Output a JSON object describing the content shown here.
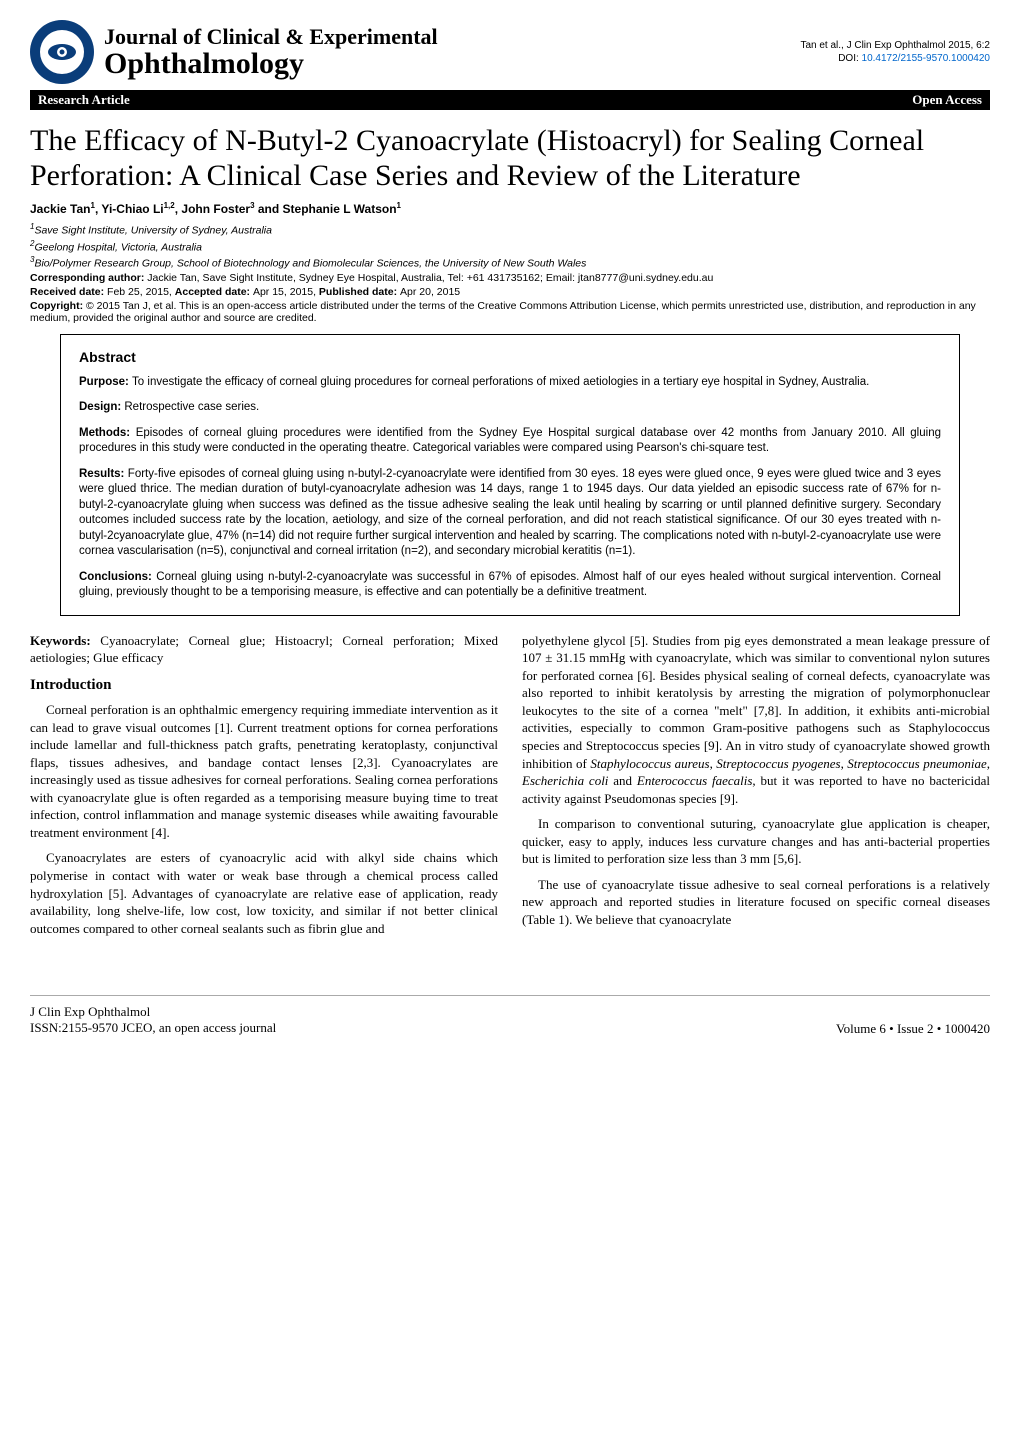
{
  "header": {
    "journal_line1": "Journal of Clinical & Experimental",
    "journal_line2": "Ophthalmology",
    "citation": "Tan et al., J Clin Exp Ophthalmol 2015, 6:2",
    "doi_prefix": "DOI: ",
    "doi": "10.4172/2155-9570.1000420",
    "bar_left": "Research Article",
    "bar_right": "Open Access"
  },
  "title": "The Efficacy of N-Butyl-2 Cyanoacrylate (Histoacryl) for Sealing Corneal Perforation: A Clinical Case Series and Review of the Literature",
  "authors_html": "Jackie Tan<span class='sup'>1</span>, Yi-Chiao Li<span class='sup'>1,2</span>, John Foster<span class='sup'>3</span> and Stephanie L Watson<span class='sup'>1</span>",
  "affiliations": [
    "1Save Sight Institute, University of Sydney, Australia",
    "2Geelong Hospital, Victoria, Australia",
    "3Bio/Polymer Research Group, School of Biotechnology and Biomolecular Sciences, the University of New South Wales"
  ],
  "corresponding": {
    "label": "Corresponding author: ",
    "text": "Jackie Tan, Save Sight Institute, Sydney Eye Hospital, Australia, Tel: +61 431735162; Email: jtan8777@uni.sydney.edu.au"
  },
  "dates": {
    "received_label": "Received date: ",
    "received": "Feb 25, 2015, ",
    "accepted_label": "Accepted date: ",
    "accepted": "Apr 15, 2015, ",
    "published_label": "Published date: ",
    "published": "Apr 20, 2015"
  },
  "copyright": {
    "label": "Copyright: ",
    "text": "© 2015 Tan J, et al. This is an open-access article distributed under the terms of the Creative Commons Attribution License, which permits unrestricted use, distribution, and reproduction in any medium, provided the original author and source are credited."
  },
  "abstract": {
    "heading": "Abstract",
    "paragraphs": [
      {
        "label": "Purpose: ",
        "text": "To investigate the efficacy of corneal gluing procedures for corneal perforations of mixed aetiologies in a tertiary eye hospital in Sydney, Australia."
      },
      {
        "label": "Design: ",
        "text": "Retrospective case series."
      },
      {
        "label": "Methods: ",
        "text": "Episodes of corneal gluing procedures were identified from the Sydney Eye Hospital surgical database over 42 months from January 2010. All gluing procedures in this study were conducted in the operating theatre. Categorical variables were compared using Pearson's chi-square test."
      },
      {
        "label": "Results: ",
        "text": "Forty-five episodes of corneal gluing using n-butyl-2-cyanoacrylate were identified from 30 eyes. 18 eyes were glued once, 9 eyes were glued twice and 3 eyes were glued thrice. The median duration of butyl-cyanoacrylate adhesion was 14 days, range 1 to 1945 days. Our data yielded an episodic success rate of 67% for n-butyl-2-cyanoacrylate gluing when success was defined as the tissue adhesive sealing the leak until healing by scarring or until planned definitive surgery. Secondary outcomes included success rate by the location, aetiology, and size of the corneal perforation, and did not reach statistical significance. Of our 30 eyes treated with n-butyl-2cyanoacrylate glue, 47% (n=14) did not require further surgical intervention and healed by scarring. The complications noted with n-butyl-2-cyanoacrylate use were cornea vascularisation (n=5), conjunctival and corneal irritation (n=2), and secondary microbial keratitis (n=1)."
      },
      {
        "label": "Conclusions: ",
        "text": "Corneal gluing using n-butyl-2-cyanoacrylate was successful in 67% of episodes. Almost half of our eyes healed without surgical intervention. Corneal gluing, previously thought to be a temporising measure, is effective and can potentially be a definitive treatment."
      }
    ]
  },
  "keywords": {
    "label": "Keywords: ",
    "text": "Cyanoacrylate; Corneal glue; Histoacryl; Corneal perforation; Mixed aetiologies; Glue efficacy"
  },
  "introduction": {
    "heading": "Introduction",
    "left_paras": [
      "Corneal perforation is an ophthalmic emergency requiring immediate intervention as it can lead to grave visual outcomes [1]. Current treatment options for cornea perforations include lamellar and full-thickness patch grafts, penetrating keratoplasty, conjunctival flaps, tissues adhesives, and bandage contact lenses [2,3]. Cyanoacrylates are increasingly used as tissue adhesives for corneal perforations. Sealing cornea perforations with cyanoacrylate glue is often regarded as a temporising measure buying time to treat infection, control inflammation and manage systemic diseases while awaiting favourable treatment environment [4].",
      "Cyanoacrylates are esters of cyanoacrylic acid with alkyl side chains which polymerise in contact with water or weak base through a chemical process called hydroxylation [5]. Advantages of cyanoacrylate are relative ease of application, ready availability, long shelve-life, low cost, low toxicity, and similar if not better clinical outcomes compared to other corneal sealants such as fibrin glue and"
    ],
    "right_paras": [
      "polyethylene glycol [5]. Studies from pig eyes demonstrated a mean leakage pressure of 107 ± 31.15 mmHg with cyanoacrylate, which was similar to conventional nylon sutures for perforated cornea [6]. Besides physical sealing of corneal defects, cyanoacrylate was also reported to inhibit keratolysis by arresting the migration of polymorphonuclear leukocytes to the site of a cornea \"melt\" [7,8]. In addition, it exhibits anti-microbial activities, especially to common Gram-positive pathogens such as Staphylococcus species and Streptococcus species [9]. An in vitro study of cyanoacrylate showed growth inhibition of <span class='italic'>Staphylococcus aureus</span>, <span class='italic'>Streptococcus pyogenes</span>, <span class='italic'>Streptococcus pneumoniae</span>, <span class='italic'>Escherichia coli</span> and <span class='italic'>Enterococcus faecalis</span>, but it was reported to have no bactericidal activity against Pseudomonas species [9].",
      "In comparison to conventional suturing, cyanoacrylate glue application is cheaper, quicker, easy to apply, induces less curvature changes and has anti-bacterial properties but is limited to perforation size less than 3 mm [5,6].",
      "The use of cyanoacrylate tissue adhesive to seal corneal perforations is a relatively new approach and reported studies in literature focused on specific corneal diseases (Table 1). We believe that cyanoacrylate"
    ]
  },
  "footer": {
    "left_line1": "J Clin Exp Ophthalmol",
    "left_line2": "ISSN:2155-9570 JCEO, an open access journal",
    "right": "Volume 6 • Issue 2 • 1000420"
  },
  "colors": {
    "logo_bg": "#0a3d7a",
    "link": "#0066cc",
    "bar_bg": "#000000",
    "bar_fg": "#ffffff"
  }
}
